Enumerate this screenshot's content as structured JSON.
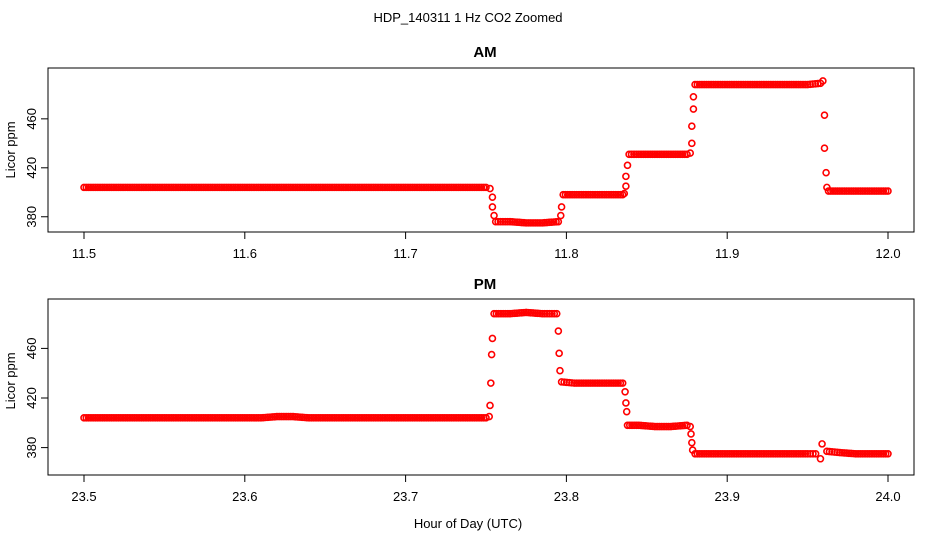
{
  "figure": {
    "title": "HDP_140311  1 Hz CO2 Zoomed",
    "xlabel": "Hour of Day (UTC)"
  },
  "chart_data": [
    {
      "type": "scatter",
      "title": "AM",
      "xlabel": "",
      "ylabel": "Licor ppm",
      "xlim": [
        11.5,
        12.0
      ],
      "ylim": [
        370,
        495
      ],
      "xticks": [
        "11.5",
        "11.6",
        "11.7",
        "11.8",
        "11.9",
        "12.0"
      ],
      "yticks": [
        "380",
        "420",
        "460"
      ],
      "color": "#ff0000",
      "marker": "open-circle",
      "series": [
        {
          "values": [
            [
              11.5,
              404
            ],
            [
              11.51,
              404
            ],
            [
              11.52,
              404
            ],
            [
              11.53,
              404
            ],
            [
              11.54,
              404
            ],
            [
              11.55,
              404
            ],
            [
              11.56,
              404
            ],
            [
              11.57,
              404
            ],
            [
              11.58,
              404
            ],
            [
              11.59,
              404
            ],
            [
              11.6,
              404
            ],
            [
              11.61,
              404
            ],
            [
              11.62,
              404
            ],
            [
              11.63,
              404
            ],
            [
              11.64,
              404
            ],
            [
              11.65,
              404
            ],
            [
              11.66,
              404
            ],
            [
              11.67,
              404
            ],
            [
              11.68,
              404
            ],
            [
              11.69,
              404
            ],
            [
              11.7,
              404
            ],
            [
              11.71,
              404
            ],
            [
              11.72,
              404
            ],
            [
              11.73,
              404
            ],
            [
              11.74,
              404
            ],
            [
              11.75,
              404
            ],
            [
              11.7525,
              403
            ],
            [
              11.754,
              396
            ],
            [
              11.754,
              388
            ],
            [
              11.755,
              381
            ],
            [
              11.756,
              376
            ],
            [
              11.765,
              376
            ],
            [
              11.775,
              375
            ],
            [
              11.785,
              375
            ],
            [
              11.795,
              376
            ],
            [
              11.7965,
              381
            ],
            [
              11.797,
              388
            ],
            [
              11.798,
              398
            ],
            [
              11.805,
              398
            ],
            [
              11.815,
              398
            ],
            [
              11.825,
              398
            ],
            [
              11.835,
              398
            ],
            [
              11.836,
              399
            ],
            [
              11.837,
              405
            ],
            [
              11.837,
              413
            ],
            [
              11.838,
              422
            ],
            [
              11.839,
              431
            ],
            [
              11.845,
              431
            ],
            [
              11.855,
              431
            ],
            [
              11.865,
              431
            ],
            [
              11.875,
              431
            ],
            [
              11.877,
              432
            ],
            [
              11.878,
              440
            ],
            [
              11.878,
              454
            ],
            [
              11.879,
              468
            ],
            [
              11.879,
              478
            ],
            [
              11.88,
              488
            ],
            [
              11.89,
              488
            ],
            [
              11.9,
              488
            ],
            [
              11.91,
              488
            ],
            [
              11.92,
              488
            ],
            [
              11.93,
              488
            ],
            [
              11.94,
              488
            ],
            [
              11.95,
              488
            ],
            [
              11.958,
              489
            ],
            [
              11.9595,
              491
            ],
            [
              11.9605,
              463
            ],
            [
              11.9605,
              436
            ],
            [
              11.9615,
              416
            ],
            [
              11.962,
              404
            ],
            [
              11.963,
              401
            ],
            [
              11.97,
              401
            ],
            [
              11.98,
              401
            ],
            [
              11.99,
              401
            ],
            [
              12.0,
              401
            ]
          ]
        }
      ]
    },
    {
      "type": "scatter",
      "title": "PM",
      "xlabel": "",
      "ylabel": "Licor ppm",
      "xlim": [
        23.5,
        24.0
      ],
      "ylim": [
        370,
        495
      ],
      "xticks": [
        "23.5",
        "23.6",
        "23.7",
        "23.8",
        "23.9",
        "24.0"
      ],
      "yticks": [
        "380",
        "420",
        "460"
      ],
      "color": "#ff0000",
      "marker": "open-circle",
      "series": [
        {
          "values": [
            [
              23.5,
              404
            ],
            [
              23.51,
              404
            ],
            [
              23.52,
              404
            ],
            [
              23.53,
              404
            ],
            [
              23.54,
              404
            ],
            [
              23.55,
              404
            ],
            [
              23.56,
              404
            ],
            [
              23.57,
              404
            ],
            [
              23.58,
              404
            ],
            [
              23.59,
              404
            ],
            [
              23.6,
              404
            ],
            [
              23.61,
              404
            ],
            [
              23.62,
              405
            ],
            [
              23.63,
              405
            ],
            [
              23.64,
              404
            ],
            [
              23.65,
              404
            ],
            [
              23.66,
              404
            ],
            [
              23.67,
              404
            ],
            [
              23.68,
              404
            ],
            [
              23.69,
              404
            ],
            [
              23.7,
              404
            ],
            [
              23.71,
              404
            ],
            [
              23.72,
              404
            ],
            [
              23.73,
              404
            ],
            [
              23.74,
              404
            ],
            [
              23.75,
              404
            ],
            [
              23.752,
              405
            ],
            [
              23.7525,
              414
            ],
            [
              23.753,
              432
            ],
            [
              23.7535,
              455
            ],
            [
              23.754,
              468
            ],
            [
              23.755,
              488
            ],
            [
              23.765,
              488
            ],
            [
              23.775,
              489
            ],
            [
              23.785,
              488
            ],
            [
              23.794,
              488
            ],
            [
              23.795,
              474
            ],
            [
              23.7955,
              456
            ],
            [
              23.796,
              442
            ],
            [
              23.797,
              433
            ],
            [
              23.805,
              432
            ],
            [
              23.815,
              432
            ],
            [
              23.825,
              432
            ],
            [
              23.835,
              432
            ],
            [
              23.8365,
              425
            ],
            [
              23.837,
              416
            ],
            [
              23.8375,
              409
            ],
            [
              23.838,
              398
            ],
            [
              23.845,
              398
            ],
            [
              23.855,
              397
            ],
            [
              23.865,
              397
            ],
            [
              23.875,
              398
            ],
            [
              23.877,
              397
            ],
            [
              23.8775,
              391
            ],
            [
              23.878,
              384
            ],
            [
              23.8785,
              378
            ],
            [
              23.88,
              375
            ],
            [
              23.89,
              375
            ],
            [
              23.9,
              375
            ],
            [
              23.91,
              375
            ],
            [
              23.92,
              375
            ],
            [
              23.93,
              375
            ],
            [
              23.94,
              375
            ],
            [
              23.95,
              375
            ],
            [
              23.955,
              375
            ],
            [
              23.958,
              371
            ],
            [
              23.959,
              383
            ],
            [
              23.962,
              377
            ],
            [
              23.97,
              376
            ],
            [
              23.98,
              375
            ],
            [
              23.99,
              375
            ],
            [
              24.0,
              375
            ]
          ]
        }
      ]
    }
  ]
}
